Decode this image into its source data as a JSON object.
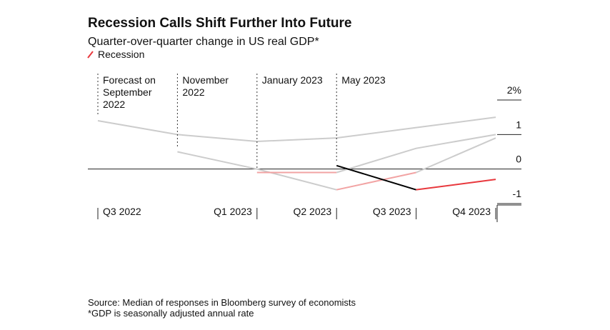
{
  "chart_data": {
    "type": "line",
    "title": "Recession Calls Shift Further Into Future",
    "subtitle": "Quarter-over-quarter change in US real GDP*",
    "legend_label": "Recession",
    "recession_color": "#e8383d",
    "categories": [
      "Q3 2022",
      null,
      "Q1 2023",
      "Q2 2023",
      "Q3 2023",
      "Q4 2023"
    ],
    "series": [
      {
        "name": "Forecast on September 2022",
        "color": "#cccccc",
        "recession_color": "#f2a3a3",
        "values": [
          1.4,
          1.0,
          0.8,
          0.9,
          1.2,
          1.5
        ]
      },
      {
        "name": "November 2022",
        "color": "#cccccc",
        "recession_color": "#f2a3a3",
        "values": [
          null,
          0.5,
          0.0,
          -0.6,
          -0.1,
          0.9
        ]
      },
      {
        "name": "January 2023",
        "color": "#cccccc",
        "recession_color": "#f2a3a3",
        "values": [
          null,
          null,
          -0.1,
          -0.1,
          0.6,
          1.0
        ]
      },
      {
        "name": "May 2023",
        "color": "#000000",
        "recession_color": "#e8383d",
        "values": [
          null,
          null,
          null,
          0.1,
          -0.6,
          -0.3
        ]
      }
    ],
    "ylim": [
      -1,
      2
    ],
    "yticks": [
      {
        "value": 2,
        "label": "2%"
      },
      1,
      0,
      -1
    ],
    "source": "Source: Median of responses in Bloomberg survey of economists",
    "note": "*GDP is seasonally adjusted annual rate"
  }
}
